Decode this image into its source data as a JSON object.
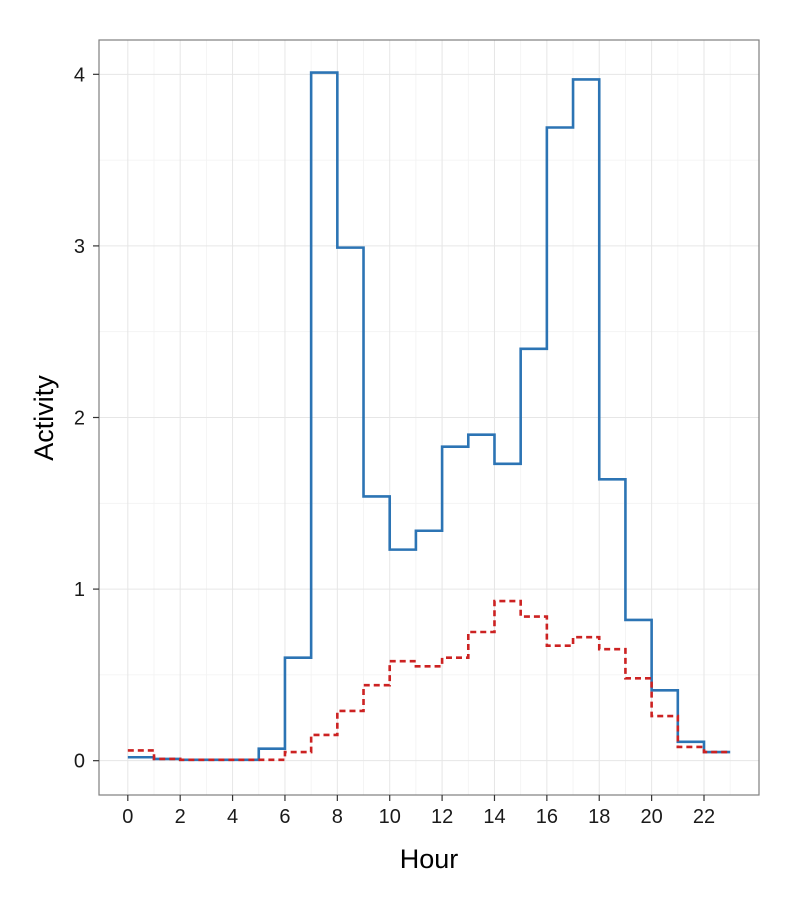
{
  "chart_data": {
    "type": "line",
    "title": "",
    "xlabel": "Hour",
    "ylabel": "Activity",
    "xlim": [
      -1.1,
      24.1
    ],
    "ylim": [
      -0.2,
      4.2
    ],
    "x_ticks": [
      0,
      2,
      4,
      6,
      8,
      10,
      12,
      14,
      16,
      18,
      20,
      22
    ],
    "y_ticks": [
      0,
      1,
      2,
      3,
      4
    ],
    "grid": true,
    "legend": "none",
    "step": "post",
    "x": [
      0,
      1,
      2,
      3,
      4,
      5,
      6,
      7,
      8,
      9,
      10,
      11,
      12,
      13,
      14,
      15,
      16,
      17,
      18,
      19,
      20,
      21,
      22,
      23
    ],
    "series": [
      {
        "color": "#2c74b4",
        "dash": "solid",
        "values": [
          0.02,
          0.01,
          0.005,
          0.005,
          0.005,
          0.07,
          0.6,
          4.01,
          2.99,
          1.54,
          1.23,
          1.34,
          1.83,
          1.9,
          1.73,
          2.4,
          3.69,
          3.97,
          1.64,
          0.82,
          0.41,
          0.11,
          0.05,
          0.05
        ]
      },
      {
        "color": "#cc2222",
        "dash": "dashed",
        "values": [
          0.06,
          0.01,
          0.005,
          0.005,
          0.005,
          0.005,
          0.05,
          0.15,
          0.29,
          0.44,
          0.58,
          0.55,
          0.6,
          0.75,
          0.93,
          0.84,
          0.67,
          0.72,
          0.65,
          0.48,
          0.26,
          0.08,
          0.05,
          0.05
        ]
      }
    ]
  }
}
